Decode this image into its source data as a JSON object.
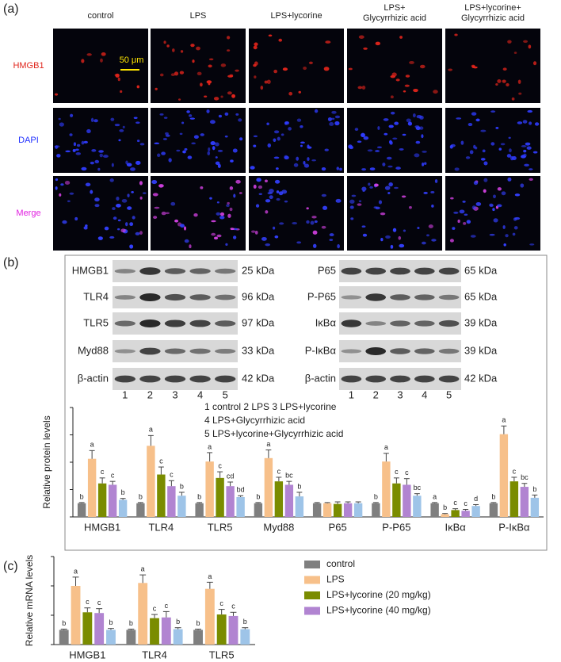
{
  "panel_a": {
    "label": "(a)",
    "columns": [
      [
        "control"
      ],
      [
        "LPS"
      ],
      [
        "LPS+lycorine"
      ],
      [
        "LPS+",
        "Glycyrrhizic acid"
      ],
      [
        "LPS+lycorine+",
        "Glycyrrhizic acid"
      ]
    ],
    "rows": [
      "HMGB1",
      "DAPI",
      "Merge"
    ],
    "scale_bar": "50 μm"
  },
  "panel_b": {
    "label": "(b)",
    "blots_left": [
      {
        "name": "HMGB1",
        "size": "25 kDa"
      },
      {
        "name": "TLR4",
        "size": "96 kDa"
      },
      {
        "name": "TLR5",
        "size": "97 kDa"
      },
      {
        "name": "Myd88",
        "size": "33 kDa"
      },
      {
        "name": "β-actin",
        "size": "42 kDa"
      }
    ],
    "blots_right": [
      {
        "name": "P65",
        "size": "65 kDa"
      },
      {
        "name": "P-P65",
        "size": "65 kDa"
      },
      {
        "name": "IκBα",
        "size": "39 kDa"
      },
      {
        "name": "P-IκBα",
        "size": "39 kDa"
      },
      {
        "name": "β-actin",
        "size": "42 kDa"
      }
    ],
    "lanes": [
      "1",
      "2",
      "3",
      "4",
      "5"
    ],
    "legend": [
      "1 control    2 LPS     3 LPS+lycorine",
      "4 LPS+Glycyrrhizic acid",
      "5 LPS+lycorine+Glycyrrhizic acid"
    ]
  },
  "panel_c": {
    "label": "(c)"
  },
  "chart_data": [
    {
      "type": "bar",
      "y_label": "Relative protein levels",
      "categories": [
        "HMGB1",
        "TLR4",
        "TLR5",
        "Myd88",
        "P65",
        "P-P65",
        "IκBα",
        "P-IκBα"
      ],
      "ylim": [
        0,
        8
      ],
      "yticks": [
        0,
        2,
        4,
        6,
        8
      ],
      "series": [
        {
          "color": "#7f7f7f",
          "values": [
            1,
            1,
            1,
            1,
            1,
            1,
            1,
            1
          ],
          "errors": [
            0.05,
            0.05,
            0.05,
            0.05,
            0.05,
            0.05,
            0.05,
            0.05
          ],
          "letters": [
            "b",
            "b",
            "b",
            "b",
            null,
            "b",
            "a",
            "b"
          ]
        },
        {
          "color": "#f7c08a",
          "values": [
            4.25,
            5.2,
            4.05,
            4.3,
            1,
            4.05,
            0.2,
            6.05
          ],
          "errors": [
            0.6,
            0.75,
            0.65,
            0.6,
            0.05,
            0.6,
            0.05,
            0.6
          ],
          "letters": [
            "a",
            "a",
            "a",
            "a",
            null,
            "a",
            "b",
            "a"
          ]
        },
        {
          "color": "#7a8c00",
          "values": [
            2.45,
            3.1,
            2.85,
            2.6,
            0.95,
            2.45,
            0.5,
            2.6
          ],
          "errors": [
            0.4,
            0.55,
            0.45,
            0.3,
            0.15,
            0.4,
            0.1,
            0.3
          ],
          "letters": [
            "c",
            "c",
            "c",
            "c",
            null,
            "c",
            "c",
            "c"
          ]
        },
        {
          "color": "#b184d1",
          "values": [
            2.35,
            2.25,
            2.25,
            2.35,
            1,
            2.35,
            0.45,
            2.2
          ],
          "errors": [
            0.25,
            0.4,
            0.3,
            0.25,
            0.1,
            0.45,
            0.1,
            0.25
          ],
          "letters": [
            "c",
            "c",
            "cd",
            "bc",
            null,
            "c",
            "c",
            "bc"
          ]
        },
        {
          "color": "#9ec4e8",
          "values": [
            1.25,
            1.55,
            1.45,
            1.5,
            1,
            1.55,
            0.8,
            1.4
          ],
          "errors": [
            0.1,
            0.25,
            0.1,
            0.3,
            0.1,
            0.15,
            0.1,
            0.2
          ],
          "letters": [
            "b",
            "b",
            "bd",
            "b",
            null,
            "bc",
            "d",
            "b"
          ]
        }
      ]
    },
    {
      "type": "bar",
      "y_label": "Relative mRNA levels",
      "categories": [
        "HMGB1",
        "TLR4",
        "TLR5"
      ],
      "ylim": [
        0,
        6
      ],
      "yticks": [
        0,
        2,
        4,
        6
      ],
      "series": [
        {
          "name": "control",
          "color": "#7f7f7f",
          "values": [
            1,
            1,
            1
          ],
          "errors": [
            0.05,
            0.05,
            0.05
          ],
          "letters": [
            "b",
            "b",
            "b"
          ]
        },
        {
          "name": "LPS",
          "color": "#f7c08a",
          "values": [
            4.0,
            4.2,
            3.8
          ],
          "errors": [
            0.6,
            0.55,
            0.45
          ],
          "letters": [
            "a",
            "a",
            "a"
          ]
        },
        {
          "name": "LPS+lycorine (20 mg/kg)",
          "color": "#7a8c00",
          "values": [
            2.2,
            1.8,
            2.05
          ],
          "errors": [
            0.3,
            0.25,
            0.35
          ],
          "letters": [
            "c",
            "c",
            "c"
          ]
        },
        {
          "name": "LPS+lycorine (40 mg/kg)",
          "color": "#b184d1",
          "values": [
            2.15,
            1.85,
            1.95
          ],
          "errors": [
            0.3,
            0.4,
            0.25
          ],
          "letters": [
            "c",
            "c",
            "c"
          ]
        },
        {
          "color": "#9ec4e8",
          "values": [
            1.0,
            1.05,
            1.05
          ],
          "errors": [
            0.1,
            0.1,
            0.1
          ],
          "letters": [
            "b",
            "b",
            "b"
          ]
        }
      ]
    }
  ]
}
